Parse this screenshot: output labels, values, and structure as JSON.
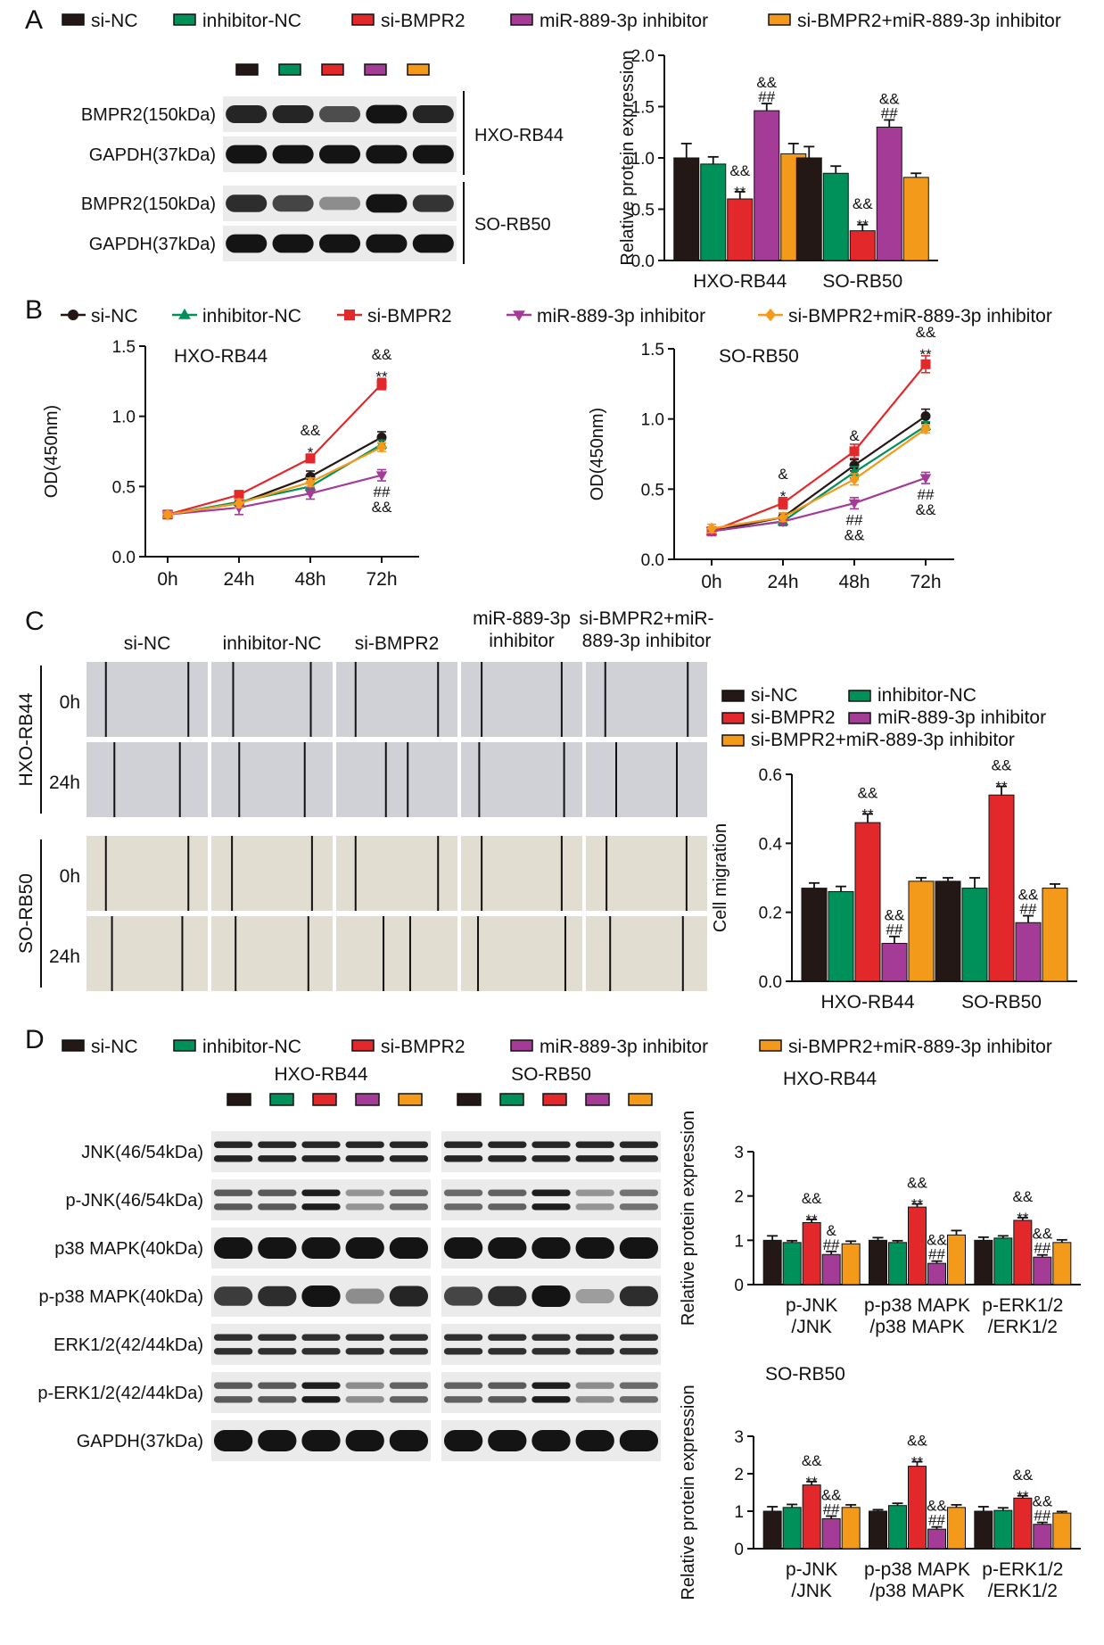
{
  "colors": {
    "groups": [
      "#231815",
      "#00905a",
      "#e2282b",
      "#a43b97",
      "#f39a1a"
    ],
    "blot_bg": "#ebebeb",
    "blot_band": "#141414",
    "well_hxo": "#cfd1d6",
    "well_so": "#e1ddd0"
  },
  "groups": [
    "si-NC",
    "inhibitor-NC",
    "si-BMPR2",
    "miR-889-3p inhibitor",
    "si-BMPR2+miR-889-3p inhibitor"
  ],
  "panel_labels": {
    "a": "A",
    "b": "B",
    "c": "C",
    "d": "D"
  },
  "panelA": {
    "blot_rows": [
      "BMPR2(150kDa)",
      "GAPDH(37kDa)",
      "BMPR2(150kDa)",
      "GAPDH(37kDa)"
    ],
    "cell_lines": [
      "HXO-RB44",
      "SO-RB50"
    ]
  },
  "panelC": {
    "columns": [
      "si-NC",
      "inhibitor-NC",
      "si-BMPR2",
      "miR-889-3p\ninhibitor",
      "si-BMPR2+miR-\n889-3p inhibitor"
    ],
    "cell_lines": [
      "HXO-RB44",
      "SO-RB50"
    ],
    "times": [
      "0h",
      "24h"
    ]
  },
  "panelD": {
    "blot_rows": [
      "JNK(46/54kDa)",
      "p-JNK(46/54kDa)",
      "p38 MAPK(40kDa)",
      "p-p38 MAPK(40kDa)",
      "ERK1/2(42/44kDa)",
      "p-ERK1/2(42/44kDa)",
      "GAPDH(37kDa)"
    ],
    "cell_lines": [
      "HXO-RB44",
      "SO-RB50"
    ]
  },
  "chart_data": [
    {
      "id": "A",
      "type": "bar",
      "categories": [
        "HXO-RB44",
        "SO-RB50"
      ],
      "series": [
        {
          "name": "si-NC",
          "values": [
            1.0,
            1.0
          ],
          "errors": [
            0.14,
            0.11
          ]
        },
        {
          "name": "inhibitor-NC",
          "values": [
            0.94,
            0.85
          ],
          "errors": [
            0.07,
            0.07
          ]
        },
        {
          "name": "si-BMPR2",
          "values": [
            0.6,
            0.29
          ],
          "errors": [
            0.07,
            0.06
          ]
        },
        {
          "name": "miR-889-3p inhibitor",
          "values": [
            1.46,
            1.3
          ],
          "errors": [
            0.07,
            0.07
          ]
        },
        {
          "name": "si-BMPR2+miR-889-3p inhibitor",
          "values": [
            1.04,
            0.81
          ],
          "errors": [
            0.1,
            0.04
          ]
        }
      ],
      "annotations": [
        {
          "category": 0,
          "series": 2,
          "lines": [
            "&&",
            "**"
          ]
        },
        {
          "category": 0,
          "series": 3,
          "lines": [
            "&&",
            "##"
          ]
        },
        {
          "category": 1,
          "series": 2,
          "lines": [
            "&&",
            "**"
          ]
        },
        {
          "category": 1,
          "series": 3,
          "lines": [
            "&&",
            "##"
          ]
        }
      ],
      "xlabel": "",
      "ylabel": "Relative protein expression",
      "ylim": [
        0,
        2.0
      ],
      "yticks": [
        0.0,
        0.5,
        1.0,
        1.5,
        2.0
      ],
      "ytick_labels": [
        "0.0",
        "0.5",
        "1.0",
        "1.5",
        "2.0"
      ],
      "grid": false
    },
    {
      "id": "B1",
      "type": "line",
      "title": "HXO-RB44",
      "x": [
        "0h",
        "24h",
        "48h",
        "72h"
      ],
      "series": [
        {
          "name": "si-NC",
          "marker": "circle",
          "values": [
            0.3,
            0.38,
            0.57,
            0.85
          ],
          "errors": [
            0.02,
            0.03,
            0.04,
            0.04
          ]
        },
        {
          "name": "inhibitor-NC",
          "marker": "triangle",
          "values": [
            0.3,
            0.39,
            0.5,
            0.8
          ],
          "errors": [
            0.02,
            0.03,
            0.03,
            0.03
          ]
        },
        {
          "name": "si-BMPR2",
          "marker": "square",
          "values": [
            0.3,
            0.44,
            0.7,
            1.23
          ],
          "errors": [
            0.02,
            0.03,
            0.03,
            0.04
          ]
        },
        {
          "name": "miR-889-3p inhibitor",
          "marker": "triangle-down",
          "values": [
            0.3,
            0.35,
            0.45,
            0.58
          ],
          "errors": [
            0.02,
            0.05,
            0.04,
            0.04
          ]
        },
        {
          "name": "si-BMPR2+miR-889-3p inhibitor",
          "marker": "diamond",
          "values": [
            0.3,
            0.38,
            0.53,
            0.78
          ],
          "errors": [
            0.02,
            0.03,
            0.03,
            0.03
          ]
        }
      ],
      "annotations": [
        {
          "x": 2,
          "above": [
            "&&",
            "*"
          ]
        },
        {
          "x": 3,
          "above": [
            "&&",
            "**"
          ],
          "below": [
            "##",
            "&&"
          ]
        }
      ],
      "xlabel": "",
      "ylabel": "OD(450nm)",
      "ylim": [
        0,
        1.5
      ],
      "yticks": [
        0.0,
        0.5,
        1.0,
        1.5
      ],
      "ytick_labels": [
        "0.0",
        "0.5",
        "1.0",
        "1.5"
      ],
      "grid": false
    },
    {
      "id": "B2",
      "type": "line",
      "title": "SO-RB50",
      "x": [
        "0h",
        "24h",
        "48h",
        "72h"
      ],
      "series": [
        {
          "name": "si-NC",
          "marker": "circle",
          "values": [
            0.2,
            0.3,
            0.67,
            1.02
          ],
          "errors": [
            0.03,
            0.03,
            0.04,
            0.05
          ]
        },
        {
          "name": "inhibitor-NC",
          "marker": "triangle",
          "values": [
            0.2,
            0.27,
            0.62,
            0.95
          ],
          "errors": [
            0.03,
            0.03,
            0.04,
            0.03
          ]
        },
        {
          "name": "si-BMPR2",
          "marker": "square",
          "values": [
            0.2,
            0.4,
            0.77,
            1.39
          ],
          "errors": [
            0.03,
            0.04,
            0.05,
            0.06
          ]
        },
        {
          "name": "miR-889-3p inhibitor",
          "marker": "triangle-down",
          "values": [
            0.2,
            0.27,
            0.4,
            0.58
          ],
          "errors": [
            0.03,
            0.03,
            0.04,
            0.04
          ]
        },
        {
          "name": "si-BMPR2+miR-889-3p inhibitor",
          "marker": "diamond",
          "values": [
            0.22,
            0.3,
            0.57,
            0.93
          ],
          "errors": [
            0.03,
            0.03,
            0.04,
            0.03
          ]
        }
      ],
      "annotations": [
        {
          "x": 1,
          "above": [
            "&",
            "*"
          ]
        },
        {
          "x": 2,
          "above": [
            "&"
          ],
          "below": [
            "##",
            "&&"
          ]
        },
        {
          "x": 3,
          "above": [
            "&&",
            "**"
          ],
          "below": [
            "##",
            "&&"
          ]
        }
      ],
      "xlabel": "",
      "ylabel": "OD(450nm)",
      "ylim": [
        0,
        1.5
      ],
      "yticks": [
        0.0,
        0.5,
        1.0,
        1.5
      ],
      "ytick_labels": [
        "0.0",
        "0.5",
        "1.0",
        "1.5"
      ],
      "grid": false
    },
    {
      "id": "C",
      "type": "bar",
      "categories": [
        "HXO-RB44",
        "SO-RB50"
      ],
      "series": [
        {
          "name": "si-NC",
          "values": [
            0.27,
            0.29
          ],
          "errors": [
            0.015,
            0.01
          ]
        },
        {
          "name": "inhibitor-NC",
          "values": [
            0.26,
            0.27
          ],
          "errors": [
            0.015,
            0.03
          ]
        },
        {
          "name": "si-BMPR2",
          "values": [
            0.46,
            0.54
          ],
          "errors": [
            0.025,
            0.025
          ]
        },
        {
          "name": "miR-889-3p inhibitor",
          "values": [
            0.11,
            0.17
          ],
          "errors": [
            0.02,
            0.02
          ]
        },
        {
          "name": "si-BMPR2+miR-889-3p inhibitor",
          "values": [
            0.29,
            0.27
          ],
          "errors": [
            0.01,
            0.012
          ]
        }
      ],
      "annotations": [
        {
          "category": 0,
          "series": 2,
          "lines": [
            "&&",
            "**"
          ]
        },
        {
          "category": 0,
          "series": 3,
          "lines": [
            "&&",
            "##"
          ]
        },
        {
          "category": 1,
          "series": 2,
          "lines": [
            "&&",
            "**"
          ]
        },
        {
          "category": 1,
          "series": 3,
          "lines": [
            "&&",
            "##"
          ]
        }
      ],
      "xlabel": "",
      "ylabel": "Cell migration",
      "ylim": [
        0,
        0.6
      ],
      "yticks": [
        0.0,
        0.2,
        0.4,
        0.6
      ],
      "ytick_labels": [
        "0.0",
        "0.2",
        "0.4",
        "0.6"
      ],
      "grid": false
    },
    {
      "id": "D1",
      "type": "bar",
      "title": "HXO-RB44",
      "categories": [
        "p-JNK\n/JNK",
        "p-p38 MAPK\n/p38 MAPK",
        "p-ERK1/2\n/ERK1/2"
      ],
      "series": [
        {
          "name": "si-NC",
          "values": [
            1.0,
            1.0,
            1.0
          ],
          "errors": [
            0.1,
            0.06,
            0.07
          ]
        },
        {
          "name": "inhibitor-NC",
          "values": [
            0.95,
            0.95,
            1.05
          ],
          "errors": [
            0.04,
            0.04,
            0.05
          ]
        },
        {
          "name": "si-BMPR2",
          "values": [
            1.4,
            1.75,
            1.45
          ],
          "errors": [
            0.07,
            0.07,
            0.06
          ]
        },
        {
          "name": "miR-889-3p inhibitor",
          "values": [
            0.68,
            0.48,
            0.62
          ],
          "errors": [
            0.07,
            0.05,
            0.05
          ]
        },
        {
          "name": "si-BMPR2+miR-889-3p inhibitor",
          "values": [
            0.92,
            1.12,
            0.95
          ],
          "errors": [
            0.06,
            0.1,
            0.06
          ]
        }
      ],
      "annotations": [
        {
          "category": 0,
          "series": 2,
          "lines": [
            "&&",
            "**"
          ]
        },
        {
          "category": 0,
          "series": 3,
          "lines": [
            "&",
            "##"
          ]
        },
        {
          "category": 1,
          "series": 2,
          "lines": [
            "&&",
            "**"
          ]
        },
        {
          "category": 1,
          "series": 3,
          "lines": [
            "&&",
            "##"
          ]
        },
        {
          "category": 2,
          "series": 2,
          "lines": [
            "&&",
            "**"
          ]
        },
        {
          "category": 2,
          "series": 3,
          "lines": [
            "&&",
            "##"
          ]
        }
      ],
      "xlabel": "",
      "ylabel": "Relative protein expression",
      "ylim": [
        0,
        3
      ],
      "yticks": [
        0,
        1,
        2,
        3
      ],
      "ytick_labels": [
        "0",
        "1",
        "2",
        "3"
      ],
      "grid": false
    },
    {
      "id": "D2",
      "type": "bar",
      "title": "SO-RB50",
      "categories": [
        "p-JNK\n/JNK",
        "p-p38 MAPK\n/p38 MAPK",
        "p-ERK1/2\n/ERK1/2"
      ],
      "series": [
        {
          "name": "si-NC",
          "values": [
            1.0,
            1.0,
            1.0
          ],
          "errors": [
            0.12,
            0.04,
            0.12
          ]
        },
        {
          "name": "inhibitor-NC",
          "values": [
            1.1,
            1.15,
            1.02
          ],
          "errors": [
            0.08,
            0.06,
            0.07
          ]
        },
        {
          "name": "si-BMPR2",
          "values": [
            1.7,
            2.2,
            1.35
          ],
          "errors": [
            0.09,
            0.12,
            0.06
          ]
        },
        {
          "name": "miR-889-3p inhibitor",
          "values": [
            0.8,
            0.52,
            0.65
          ],
          "errors": [
            0.07,
            0.06,
            0.05
          ]
        },
        {
          "name": "si-BMPR2+miR-889-3p inhibitor",
          "values": [
            1.1,
            1.1,
            0.95
          ],
          "errors": [
            0.07,
            0.07,
            0.04
          ]
        }
      ],
      "annotations": [
        {
          "category": 0,
          "series": 2,
          "lines": [
            "&&",
            "**"
          ]
        },
        {
          "category": 0,
          "series": 3,
          "lines": [
            "&&",
            "##"
          ]
        },
        {
          "category": 1,
          "series": 2,
          "lines": [
            "&&",
            "**"
          ]
        },
        {
          "category": 1,
          "series": 3,
          "lines": [
            "&&",
            "##"
          ]
        },
        {
          "category": 2,
          "series": 2,
          "lines": [
            "&&",
            "**"
          ]
        },
        {
          "category": 2,
          "series": 3,
          "lines": [
            "&&",
            "##"
          ]
        }
      ],
      "xlabel": "",
      "ylabel": "Relative protein expression",
      "ylim": [
        0,
        3
      ],
      "yticks": [
        0,
        1,
        2,
        3
      ],
      "ytick_labels": [
        "0",
        "1",
        "2",
        "3"
      ],
      "grid": false
    }
  ]
}
